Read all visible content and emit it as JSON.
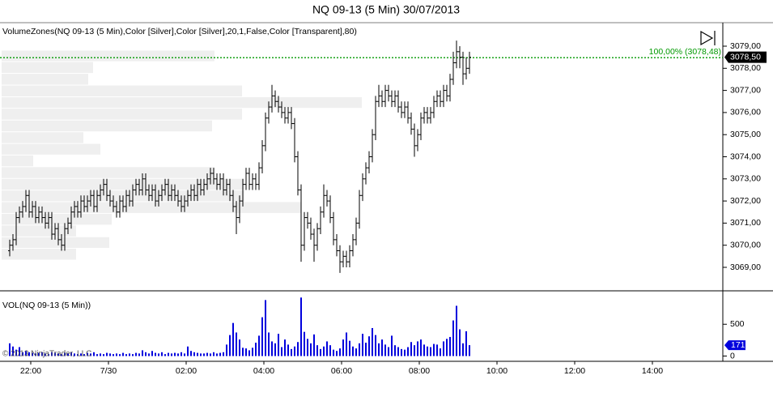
{
  "chart_data": [
    {
      "type": "ohlc",
      "title": "NQ 09-13 (5 Min)  30/07/2013",
      "subtitle": "VolumeZones(NQ 09-13 (5 Min),Color [Silver],Color [Silver],20,1,False,Color [Transparent],80)",
      "color": "#000000",
      "open": [
        3069.75,
        3070.0,
        3070.25,
        3071.25,
        3071.5,
        3071.75,
        3072.25,
        3071.5,
        3071.75,
        3071.25,
        3071.5,
        3071.25,
        3071.0,
        3071.25,
        3070.5,
        3070.75,
        3070.25,
        3070.0,
        3070.75,
        3071.0,
        3071.5,
        3071.75,
        3071.5,
        3072.0,
        3071.75,
        3072.0,
        3072.25,
        3071.75,
        3072.25,
        3072.5,
        3072.75,
        3072.25,
        3072.0,
        3071.75,
        3071.5,
        3072.0,
        3071.75,
        3072.25,
        3072.0,
        3072.5,
        3072.75,
        3072.5,
        3073.0,
        3072.5,
        3072.25,
        3072.5,
        3072.0,
        3072.25,
        3072.5,
        3072.75,
        3072.25,
        3072.5,
        3072.25,
        3072.0,
        3071.75,
        3072.0,
        3072.25,
        3072.5,
        3072.25,
        3072.75,
        3072.5,
        3072.75,
        3073.0,
        3073.25,
        3073.0,
        3072.75,
        3073.0,
        3072.5,
        3072.75,
        3072.25,
        3071.75,
        3071.25,
        3072.0,
        3072.75,
        3073.25,
        3072.75,
        3073.0,
        3072.75,
        3073.5,
        3074.5,
        3075.75,
        3076.25,
        3076.75,
        3076.5,
        3076.25,
        3076.0,
        3075.75,
        3076.0,
        3075.5,
        3074.0,
        3072.5,
        3070.0,
        3071.25,
        3071.0,
        3070.5,
        3070.0,
        3070.75,
        3071.5,
        3072.25,
        3072.0,
        3071.25,
        3070.25,
        3069.75,
        3069.25,
        3069.5,
        3069.25,
        3069.75,
        3070.25,
        3071.0,
        3072.25,
        3073.0,
        3073.5,
        3074.0,
        3075.0,
        3076.5,
        3076.75,
        3076.5,
        3077.0,
        3076.75,
        3076.5,
        3076.75,
        3076.25,
        3076.0,
        3076.25,
        3075.75,
        3075.25,
        3074.5,
        3075.0,
        3075.75,
        3076.0,
        3075.75,
        3076.0,
        3076.5,
        3076.75,
        3076.5,
        3077.0,
        3076.75,
        3077.5,
        3078.25,
        3078.75,
        3078.5,
        3077.75,
        3078.0
      ],
      "high": [
        3070.25,
        3070.5,
        3071.5,
        3071.75,
        3072,
        3072.5,
        3072.5,
        3072,
        3072,
        3071.75,
        3071.75,
        3071.5,
        3071.5,
        3071.5,
        3071,
        3071,
        3070.5,
        3071,
        3071.25,
        3071.75,
        3072,
        3072,
        3072.25,
        3072.25,
        3072.25,
        3072.5,
        3072.5,
        3072.5,
        3072.75,
        3073,
        3073,
        3072.5,
        3072.25,
        3072,
        3072.25,
        3072.25,
        3072.5,
        3072.5,
        3072.75,
        3073,
        3073,
        3073.25,
        3073.25,
        3072.75,
        3072.75,
        3072.75,
        3072.5,
        3072.75,
        3073,
        3073,
        3072.75,
        3072.75,
        3072.5,
        3072.25,
        3072.25,
        3072.5,
        3072.75,
        3072.75,
        3073,
        3073,
        3073,
        3073.25,
        3073.5,
        3073.5,
        3073.25,
        3073.25,
        3073.25,
        3073,
        3073,
        3072.5,
        3072,
        3072.25,
        3073,
        3073.5,
        3073.5,
        3073.25,
        3073.25,
        3073.75,
        3074.75,
        3076,
        3076.5,
        3077.25,
        3077,
        3076.75,
        3076.5,
        3076.25,
        3076.25,
        3076.25,
        3075.75,
        3074.25,
        3072.75,
        3071.5,
        3071.5,
        3071.25,
        3070.75,
        3071,
        3071.75,
        3072.75,
        3072.5,
        3072.25,
        3071.5,
        3070.5,
        3070,
        3069.75,
        3069.75,
        3070,
        3070.5,
        3071.25,
        3072.5,
        3073.25,
        3073.75,
        3074.25,
        3075.25,
        3076.75,
        3077.25,
        3077,
        3077.25,
        3077.25,
        3077,
        3077,
        3077,
        3076.5,
        3076.5,
        3076.5,
        3076,
        3075.5,
        3075.25,
        3076,
        3076.25,
        3076.25,
        3076.25,
        3076.75,
        3077,
        3077,
        3077.25,
        3077.25,
        3077.75,
        3078.75,
        3079.25,
        3079,
        3078.75,
        3078.5,
        3078.75
      ],
      "low": [
        3069.5,
        3069.75,
        3070,
        3071,
        3071.25,
        3071.5,
        3071.25,
        3071.25,
        3071,
        3071,
        3071,
        3070.75,
        3070.75,
        3070.25,
        3070.25,
        3070,
        3069.75,
        3069.75,
        3070.5,
        3070.75,
        3071.25,
        3071.25,
        3071.25,
        3071.5,
        3071.5,
        3071.75,
        3071.5,
        3071.5,
        3072,
        3072.25,
        3072,
        3071.75,
        3071.5,
        3071.25,
        3071.25,
        3071.5,
        3071.5,
        3071.75,
        3071.75,
        3072.25,
        3072.25,
        3072.25,
        3072.25,
        3072,
        3072,
        3071.75,
        3071.75,
        3072,
        3072.25,
        3072,
        3072,
        3072,
        3071.75,
        3071.5,
        3071.5,
        3071.75,
        3072,
        3072,
        3072,
        3072.25,
        3072.25,
        3072.5,
        3072.75,
        3072.75,
        3072.5,
        3072.5,
        3072.25,
        3072.25,
        3072,
        3071.5,
        3070.5,
        3071,
        3071.75,
        3072.5,
        3072.5,
        3072.5,
        3072.5,
        3072.5,
        3073.25,
        3074.25,
        3075.5,
        3076,
        3076.25,
        3076,
        3075.75,
        3075.5,
        3075.5,
        3075.25,
        3073.75,
        3072.25,
        3069.25,
        3069.75,
        3070.75,
        3070.25,
        3069.25,
        3069.75,
        3070.5,
        3071.25,
        3071.75,
        3071,
        3070,
        3069.5,
        3068.75,
        3069,
        3069,
        3069,
        3069.5,
        3070,
        3070.75,
        3072,
        3072.75,
        3073.25,
        3073.75,
        3074.75,
        3076.25,
        3076.25,
        3076.25,
        3076.5,
        3076.25,
        3076.25,
        3076,
        3075.75,
        3075.75,
        3075.5,
        3075,
        3074,
        3074.25,
        3074.75,
        3075.5,
        3075.5,
        3075.5,
        3075.75,
        3076.25,
        3076.25,
        3076.25,
        3076.5,
        3076.5,
        3077.25,
        3078,
        3078,
        3077.25,
        3077.5,
        3077.75
      ],
      "close": [
        3070.0,
        3070.25,
        3071.25,
        3071.5,
        3071.75,
        3072.25,
        3071.5,
        3071.75,
        3071.25,
        3071.5,
        3071.25,
        3071.0,
        3071.25,
        3070.5,
        3070.75,
        3070.25,
        3070.0,
        3070.75,
        3071.0,
        3071.5,
        3071.75,
        3071.5,
        3072.0,
        3071.75,
        3072.0,
        3072.25,
        3071.75,
        3072.25,
        3072.5,
        3072.75,
        3072.25,
        3072.0,
        3071.75,
        3071.5,
        3072.0,
        3071.75,
        3072.25,
        3072.0,
        3072.5,
        3072.75,
        3072.5,
        3073.0,
        3072.5,
        3072.25,
        3072.5,
        3072.0,
        3072.25,
        3072.5,
        3072.75,
        3072.25,
        3072.5,
        3072.25,
        3072.0,
        3071.75,
        3072.0,
        3072.25,
        3072.5,
        3072.25,
        3072.75,
        3072.5,
        3072.75,
        3073.0,
        3073.25,
        3073.0,
        3072.75,
        3073.0,
        3072.5,
        3072.75,
        3072.25,
        3071.75,
        3071.25,
        3072.0,
        3072.75,
        3073.25,
        3072.75,
        3073.0,
        3072.75,
        3073.5,
        3074.5,
        3075.75,
        3076.25,
        3076.75,
        3076.5,
        3076.25,
        3076.0,
        3075.75,
        3076.0,
        3075.5,
        3074.0,
        3072.5,
        3070.0,
        3071.25,
        3071.0,
        3070.5,
        3070.0,
        3070.75,
        3071.5,
        3072.25,
        3072.0,
        3071.25,
        3070.25,
        3069.75,
        3069.25,
        3069.5,
        3069.25,
        3069.75,
        3070.25,
        3071.0,
        3072.25,
        3073.0,
        3073.5,
        3074.0,
        3075.0,
        3076.5,
        3076.75,
        3076.5,
        3077.0,
        3076.75,
        3076.5,
        3076.75,
        3076.25,
        3076.0,
        3076.25,
        3075.75,
        3075.25,
        3074.5,
        3075.0,
        3075.75,
        3076.0,
        3075.75,
        3076.0,
        3076.5,
        3076.75,
        3076.5,
        3077.0,
        3076.75,
        3077.5,
        3078.25,
        3078.75,
        3078.5,
        3077.75,
        3078.0,
        3078.5
      ],
      "last_price_label": "3078,50",
      "ylim": [
        3068,
        3080
      ],
      "yticks": [
        {
          "value": 3069,
          "label": "3069,00"
        },
        {
          "value": 3070,
          "label": "3070,00"
        },
        {
          "value": 3071,
          "label": "3071,00"
        },
        {
          "value": 3072,
          "label": "3072,00"
        },
        {
          "value": 3073,
          "label": "3073,00"
        },
        {
          "value": 3074,
          "label": "3074,00"
        },
        {
          "value": 3075,
          "label": "3075,00"
        },
        {
          "value": 3076,
          "label": "3076,00"
        },
        {
          "value": 3077,
          "label": "3077,00"
        },
        {
          "value": 3078,
          "label": "3078,00"
        },
        {
          "value": 3079,
          "label": "3079,00"
        }
      ],
      "xlim": [
        -3,
        220.25
      ],
      "annotation": {
        "text": "100,00% (3078,48)",
        "value": 3078.48,
        "color": "#009900"
      },
      "volume_zones": {
        "color": "#efefef",
        "bins": [
          3069.33,
          3069.86,
          3070.38,
          3070.91,
          3071.44,
          3071.97,
          3072.49,
          3073.02,
          3073.55,
          3074.08,
          3074.6,
          3075.13,
          3075.66,
          3076.19,
          3076.71,
          3077.24,
          3077.77,
          3078.3,
          3078.82
        ],
        "values": [
          920,
          1330,
          920,
          1360,
          3700,
          3000,
          3000,
          2630,
          390,
          1220,
          1010,
          2600,
          2970,
          4450,
          2970,
          1070,
          1130,
          2630
        ],
        "xlim": [
          0,
          8910
        ]
      }
    },
    {
      "type": "bar",
      "title": "VOL(NQ 09-13 (5 Min))",
      "color": "#0000dd",
      "values": [
        200,
        150,
        100,
        140,
        60,
        80,
        60,
        50,
        40,
        50,
        60,
        40,
        30,
        60,
        50,
        40,
        30,
        50,
        40,
        60,
        40,
        30,
        40,
        30,
        50,
        40,
        60,
        30,
        40,
        30,
        50,
        40,
        30,
        40,
        30,
        50,
        30,
        40,
        30,
        50,
        40,
        90,
        60,
        40,
        80,
        50,
        40,
        60,
        30,
        50,
        40,
        50,
        40,
        60,
        40,
        150,
        80,
        60,
        50,
        40,
        40,
        50,
        40,
        60,
        40,
        50,
        60,
        180,
        330,
        520,
        370,
        260,
        130,
        120,
        90,
        130,
        210,
        320,
        610,
        880,
        370,
        230,
        200,
        350,
        140,
        260,
        180,
        110,
        150,
        220,
        920,
        380,
        270,
        200,
        340,
        170,
        110,
        150,
        230,
        170,
        100,
        80,
        120,
        260,
        370,
        240,
        150,
        120,
        200,
        350,
        210,
        310,
        440,
        330,
        200,
        260,
        180,
        140,
        320,
        170,
        140,
        110,
        100,
        140,
        220,
        170,
        230,
        260,
        180,
        150,
        140,
        190,
        180,
        120,
        230,
        270,
        300,
        560,
        790,
        420,
        200,
        390,
        171
      ],
      "ylim": [
        -70,
        1000
      ],
      "yticks": [
        0,
        500
      ],
      "xlim": [
        -3,
        220.25
      ],
      "xticks": [
        {
          "value": 6.5,
          "label": "22:00"
        },
        {
          "value": 30.5,
          "label": "7/30"
        },
        {
          "value": 54.5,
          "label": "02:00"
        },
        {
          "value": 78.5,
          "label": "04:00"
        },
        {
          "value": 102.5,
          "label": "06:00"
        },
        {
          "value": 126.5,
          "label": "08:00"
        },
        {
          "value": 150.5,
          "label": "10:00"
        },
        {
          "value": 174.5,
          "label": "12:00"
        },
        {
          "value": 198.5,
          "label": "14:00"
        }
      ],
      "copyright": "© 2013 NinjaTrader, LLC"
    }
  ]
}
